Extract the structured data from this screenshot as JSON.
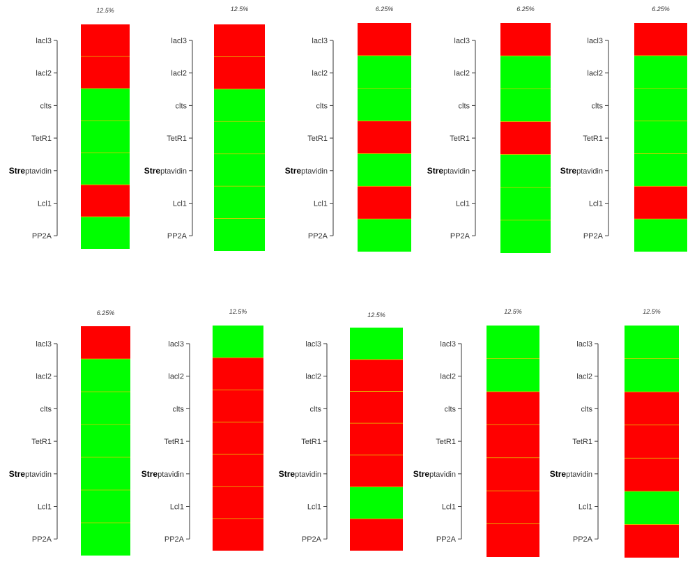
{
  "colors": {
    "on": "#ff0000",
    "off": "#00ff00",
    "separator": "#e0c800",
    "axis": "#333333"
  },
  "chart_data": {
    "type": "heatmap",
    "rows": [
      "lacl3",
      "lacl2",
      "clts",
      "TetR1",
      "Streptavidin",
      "Lcl1",
      "PP2A"
    ],
    "row_label_bold_prefix": "Stre",
    "value_legend": {
      "1": "red",
      "0": "green"
    },
    "panels": [
      {
        "percent": "12.5%",
        "values": [
          1,
          1,
          0,
          0,
          0,
          1,
          0
        ]
      },
      {
        "percent": "12.5%",
        "values": [
          1,
          1,
          0,
          0,
          0,
          0,
          0
        ]
      },
      {
        "percent": "6.25%",
        "values": [
          1,
          0,
          0,
          1,
          0,
          1,
          0
        ]
      },
      {
        "percent": "6.25%",
        "values": [
          1,
          0,
          0,
          1,
          0,
          0,
          0
        ]
      },
      {
        "percent": "6.25%",
        "values": [
          1,
          0,
          0,
          0,
          0,
          1,
          0
        ]
      },
      {
        "percent": "6.25%",
        "values": [
          1,
          0,
          0,
          0,
          0,
          0,
          0
        ]
      },
      {
        "percent": "12.5%",
        "values": [
          0,
          1,
          1,
          1,
          1,
          1,
          1
        ]
      },
      {
        "percent": "12.5%",
        "values": [
          0,
          1,
          1,
          1,
          1,
          0,
          1
        ]
      },
      {
        "percent": "12.5%",
        "values": [
          0,
          0,
          1,
          1,
          1,
          1,
          1
        ]
      },
      {
        "percent": "12.5%",
        "values": [
          0,
          0,
          1,
          1,
          1,
          0,
          1
        ]
      }
    ]
  }
}
